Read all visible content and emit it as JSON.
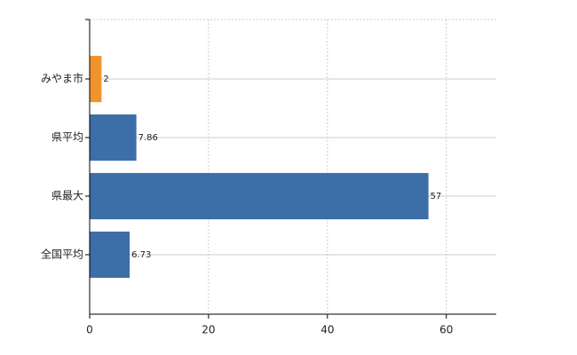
{
  "chart_data": {
    "type": "bar",
    "orientation": "horizontal",
    "categories": [
      "みやま市",
      "県平均",
      "県最大",
      "全国平均"
    ],
    "values": [
      2,
      7.86,
      57,
      6.73
    ],
    "colors": [
      "#f0932b",
      "#3d6ea8",
      "#3d6ea8",
      "#3d6ea8"
    ],
    "xlim": [
      0,
      68.4
    ],
    "xticks": [
      0,
      20,
      40,
      60
    ],
    "grid": true
  }
}
